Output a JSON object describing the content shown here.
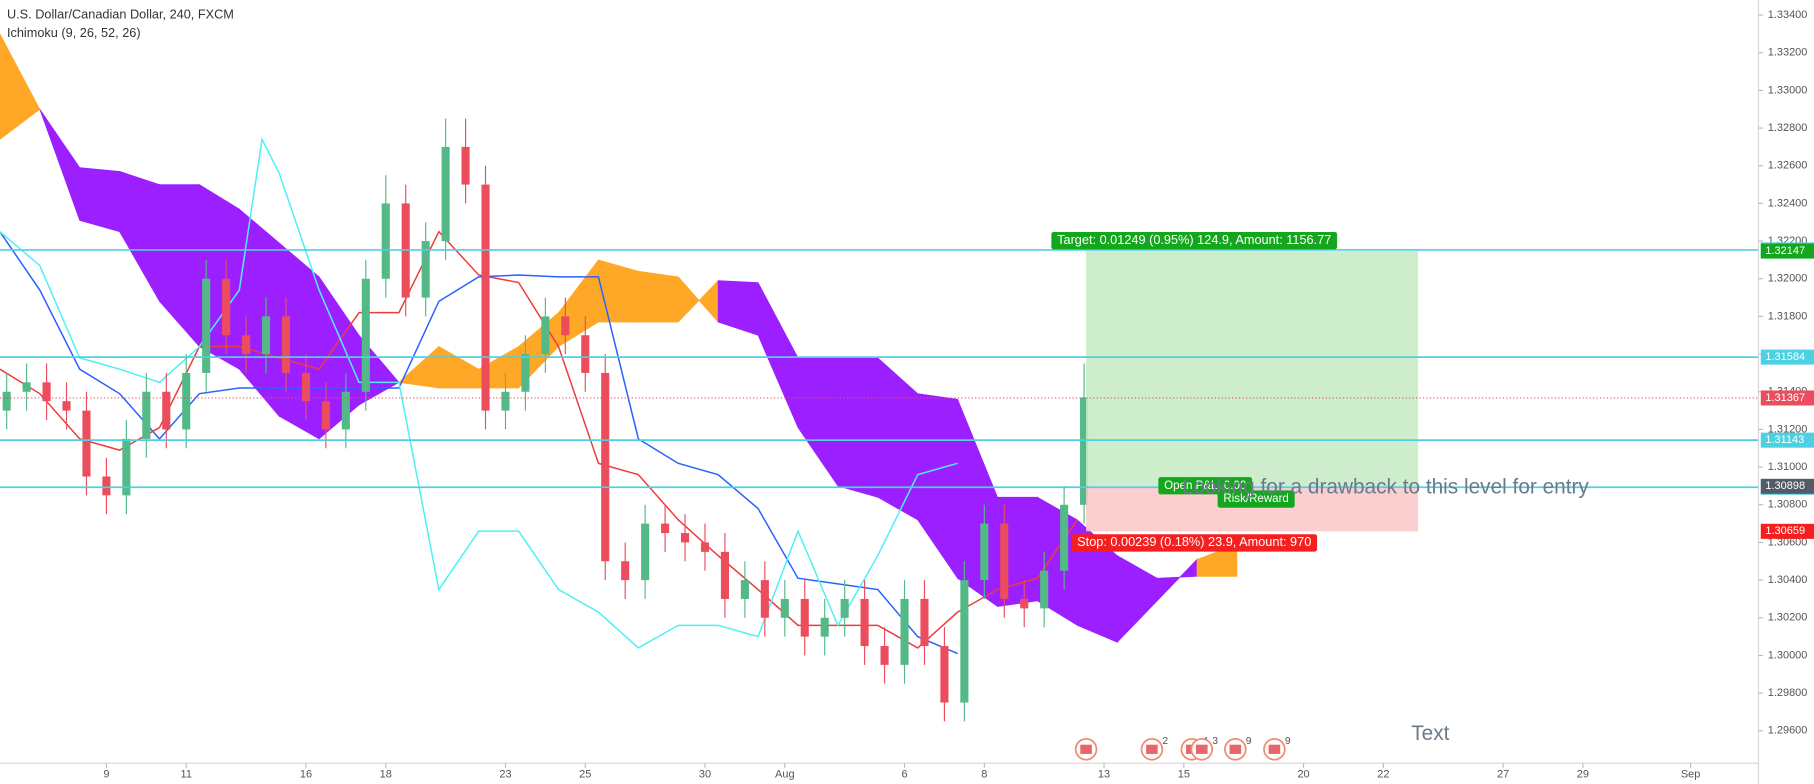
{
  "chart_data": {
    "type": "candlestick",
    "title": "U.S. Dollar/Canadian Dollar, 240, FXCM",
    "subtitle": "Ichimoku (9, 26, 52, 26)",
    "xlim": [
      2.333,
      46.4
    ],
    "xticks": [
      {
        "value": 5,
        "label": "9"
      },
      {
        "value": 7,
        "label": "11"
      },
      {
        "value": 10,
        "label": "16"
      },
      {
        "value": 12,
        "label": "18"
      },
      {
        "value": 15,
        "label": "23"
      },
      {
        "value": 17,
        "label": "25"
      },
      {
        "value": 20,
        "label": "30"
      },
      {
        "value": 22,
        "label": "Aug"
      },
      {
        "value": 25,
        "label": "6"
      },
      {
        "value": 27,
        "label": "8"
      },
      {
        "value": 30,
        "label": "13"
      },
      {
        "value": 32,
        "label": "15"
      },
      {
        "value": 35,
        "label": "20"
      },
      {
        "value": 37,
        "label": "22"
      },
      {
        "value": 40,
        "label": "27"
      },
      {
        "value": 42,
        "label": "29"
      },
      {
        "value": 44.7,
        "label": "Sep"
      }
    ],
    "ylim": [
      1.29428,
      1.3348
    ],
    "yticks": [
      {
        "value": 1.296,
        "label": "1.29600"
      },
      {
        "value": 1.298,
        "label": "1.29800"
      },
      {
        "value": 1.3,
        "label": "1.30000"
      },
      {
        "value": 1.302,
        "label": "1.30200"
      },
      {
        "value": 1.304,
        "label": "1.30400"
      },
      {
        "value": 1.306,
        "label": "1.30600"
      },
      {
        "value": 1.308,
        "label": "1.30800"
      },
      {
        "value": 1.31,
        "label": "1.31000"
      },
      {
        "value": 1.312,
        "label": "1.31200"
      },
      {
        "value": 1.314,
        "label": "1.31400"
      },
      {
        "value": 1.316,
        "label": "1.31600"
      },
      {
        "value": 1.318,
        "label": "1.31800"
      },
      {
        "value": 1.32,
        "label": "1.32000"
      },
      {
        "value": 1.322,
        "label": "1.32200"
      },
      {
        "value": 1.324,
        "label": "1.32400"
      },
      {
        "value": 1.326,
        "label": "1.32600"
      },
      {
        "value": 1.328,
        "label": "1.32800"
      },
      {
        "value": 1.33,
        "label": "1.33000"
      },
      {
        "value": 1.332,
        "label": "1.33200"
      },
      {
        "value": 1.334,
        "label": "1.33400"
      }
    ],
    "up_color": "#53b987",
    "down_color": "#eb4d5c",
    "x": [
      2.5,
      3,
      3.5,
      4,
      4.5,
      5,
      5.5,
      6,
      6.5,
      7,
      7.5,
      8,
      8.5,
      9,
      9.5,
      10,
      10.5,
      11,
      11.5,
      12,
      12.5,
      13,
      13.5,
      14,
      14.5,
      15,
      15.5,
      16,
      16.5,
      17,
      17.5,
      18,
      18.5,
      19,
      19.5,
      20,
      20.5,
      21,
      21.5,
      22,
      22.5,
      23,
      23.5,
      24,
      24.5,
      25,
      25.5,
      26,
      26.5,
      27,
      27.5,
      28,
      28.5,
      29,
      29.5
    ],
    "open": [
      1.313,
      1.314,
      1.3145,
      1.3135,
      1.313,
      1.3095,
      1.3085,
      1.3115,
      1.314,
      1.312,
      1.315,
      1.32,
      1.317,
      1.316,
      1.318,
      1.315,
      1.3135,
      1.312,
      1.314,
      1.32,
      1.324,
      1.319,
      1.322,
      1.327,
      1.325,
      1.313,
      1.314,
      1.316,
      1.318,
      1.317,
      1.315,
      1.305,
      1.304,
      1.307,
      1.3065,
      1.306,
      1.3055,
      1.303,
      1.304,
      1.302,
      1.303,
      1.301,
      1.302,
      1.303,
      1.3005,
      1.2995,
      1.303,
      1.3005,
      1.2975,
      1.304,
      1.307,
      1.303,
      1.3025,
      1.3045,
      1.308
    ],
    "high": [
      1.315,
      1.3155,
      1.3155,
      1.3145,
      1.314,
      1.3105,
      1.3125,
      1.315,
      1.315,
      1.316,
      1.321,
      1.321,
      1.318,
      1.319,
      1.319,
      1.316,
      1.3145,
      1.315,
      1.321,
      1.3255,
      1.325,
      1.323,
      1.3285,
      1.3285,
      1.326,
      1.315,
      1.317,
      1.319,
      1.319,
      1.318,
      1.316,
      1.306,
      1.308,
      1.308,
      1.3075,
      1.307,
      1.3065,
      1.305,
      1.305,
      1.304,
      1.304,
      1.303,
      1.304,
      1.304,
      1.3015,
      1.304,
      1.304,
      1.3015,
      1.305,
      1.308,
      1.308,
      1.304,
      1.3055,
      1.309,
      1.3155
    ],
    "low": [
      1.312,
      1.313,
      1.3125,
      1.312,
      1.3085,
      1.3075,
      1.3075,
      1.3105,
      1.311,
      1.311,
      1.314,
      1.316,
      1.315,
      1.315,
      1.314,
      1.3125,
      1.311,
      1.311,
      1.313,
      1.319,
      1.318,
      1.318,
      1.321,
      1.324,
      1.312,
      1.312,
      1.313,
      1.315,
      1.316,
      1.314,
      1.304,
      1.303,
      1.303,
      1.3055,
      1.305,
      1.3045,
      1.302,
      1.302,
      1.301,
      1.301,
      1.3,
      1.3,
      1.301,
      1.2995,
      1.2985,
      1.2985,
      1.2995,
      1.2965,
      1.2965,
      1.303,
      1.302,
      1.3015,
      1.3015,
      1.3035,
      1.307
    ],
    "close": [
      1.314,
      1.3145,
      1.3135,
      1.313,
      1.3095,
      1.3085,
      1.3115,
      1.314,
      1.312,
      1.315,
      1.32,
      1.317,
      1.316,
      1.318,
      1.315,
      1.3135,
      1.312,
      1.314,
      1.32,
      1.324,
      1.319,
      1.322,
      1.327,
      1.325,
      1.313,
      1.314,
      1.316,
      1.318,
      1.317,
      1.315,
      1.305,
      1.304,
      1.307,
      1.3065,
      1.306,
      1.3055,
      1.303,
      1.304,
      1.302,
      1.303,
      1.301,
      1.302,
      1.303,
      1.3005,
      1.2995,
      1.303,
      1.3005,
      1.2975,
      1.304,
      1.307,
      1.303,
      1.3025,
      1.3045,
      1.308,
      1.3137
    ],
    "cloud": {
      "x": [
        2.33,
        3.33,
        4.33,
        5.33,
        6.33,
        7.33,
        8.33,
        9.33,
        10.33,
        11.33,
        12.33,
        13.33,
        14.33,
        15.33,
        16.33,
        17.33,
        18.33,
        19.33,
        20.33,
        21.33,
        22.33,
        23.33,
        24.33,
        25.33,
        26.33,
        27.33,
        28.33,
        29.33,
        30.33,
        31.33,
        32.33,
        33.33
      ],
      "span_a": [
        1.333,
        1.329,
        1.3231,
        1.3225,
        1.3188,
        1.3164,
        1.3152,
        1.3127,
        1.3115,
        1.3133,
        1.3145,
        1.3164,
        1.3152,
        1.3164,
        1.3182,
        1.321,
        1.3204,
        1.3201,
        1.3177,
        1.317,
        1.3121,
        1.309,
        1.3084,
        1.3072,
        1.3041,
        1.3026,
        1.3029,
        1.3016,
        1.3007,
        1.3029,
        1.3051,
        1.3059
      ],
      "span_b": [
        1.3274,
        1.329,
        1.3259,
        1.3257,
        1.325,
        1.325,
        1.3237,
        1.3219,
        1.3201,
        1.317,
        1.3145,
        1.3142,
        1.3142,
        1.3142,
        1.3164,
        1.3177,
        1.3177,
        1.3177,
        1.3199,
        1.3198,
        1.3158,
        1.3158,
        1.3158,
        1.3139,
        1.3136,
        1.3084,
        1.3084,
        1.3072,
        1.3053,
        1.3041,
        1.3042,
        1.3042
      ],
      "up_color": "#ffa726",
      "down_color": "#9c1fff"
    },
    "lines": [
      {
        "color": "#2962ff",
        "x": [
          2.33,
          3.33,
          4.33,
          5.33,
          6.33,
          7.33,
          8.33,
          9.33,
          10.33,
          11.33,
          12.33,
          13.33,
          14.33,
          15.33,
          16.33,
          17.33,
          18.33,
          19.33,
          20.33,
          21.33,
          22.33,
          23.33,
          24.33,
          25.33,
          26.33
        ],
        "values": [
          1.3225,
          1.3194,
          1.3152,
          1.3139,
          1.3115,
          1.3139,
          1.3142,
          1.3142,
          1.3142,
          1.3142,
          1.3142,
          1.3188,
          1.3201,
          1.3202,
          1.3201,
          1.3201,
          1.3115,
          1.3102,
          1.3096,
          1.3078,
          1.3041,
          1.3038,
          1.3035,
          1.301,
          1.3001
        ]
      },
      {
        "color": "#ef3b3b",
        "x": [
          2.33,
          3.33,
          4.33,
          5.33,
          6.33,
          7.33,
          8.33,
          9.33,
          10.33,
          11.33,
          12.33,
          13.33,
          14.33,
          15.33,
          16.33,
          17.33,
          18.33,
          19.33,
          20.33,
          21.33,
          22.33,
          23.33,
          24.33,
          25.33,
          26.33,
          27.33,
          28.33,
          29.33
        ],
        "values": [
          1.3152,
          1.3139,
          1.3115,
          1.3109,
          1.3121,
          1.3164,
          1.3164,
          1.3158,
          1.3152,
          1.3182,
          1.3182,
          1.3225,
          1.3202,
          1.3198,
          1.3164,
          1.3102,
          1.3096,
          1.3072,
          1.3053,
          1.3035,
          1.3016,
          1.3016,
          1.3016,
          1.3004,
          1.3023,
          1.3035,
          1.3041,
          1.3072
        ]
      },
      {
        "color": "#4ff0f5",
        "x": [
          2.33,
          3.33,
          4.33,
          5.33,
          6.33,
          7.33,
          8.33,
          8.9,
          9.33,
          10.33,
          11.33,
          12.33,
          13.33,
          14.33,
          15.33,
          16.33,
          17.33,
          18.33,
          19.33,
          20.33,
          21.33,
          22.33,
          23.33,
          24.33,
          25.33,
          26.33
        ],
        "values": [
          1.3225,
          1.3207,
          1.3158,
          1.3152,
          1.3145,
          1.3164,
          1.3194,
          1.3274,
          1.3256,
          1.3194,
          1.3145,
          1.3145,
          1.3035,
          1.3066,
          1.3066,
          1.3035,
          1.3023,
          1.3004,
          1.3016,
          1.3016,
          1.301,
          1.3066,
          1.3016,
          1.3053,
          1.3096,
          1.3102
        ]
      }
    ],
    "hlines": [
      1.32153,
      1.31584,
      1.31143,
      1.30893
    ],
    "hline_color": "#4dd0e1",
    "last_price": 1.31367,
    "position": {
      "x_start": 29.55,
      "x_end": 37.87,
      "entry": 1.30898,
      "target": 1.32147,
      "stop": 1.30659,
      "target_label": "Target: 0.01249 (0.95%) 124.9, Amount: 1156.77",
      "stop_label": "Stop: 0.00239 (0.18%) 23.9, Amount: 970",
      "pnl_label": "Open P&L: 0.00",
      "rr_label": "Risk/Reward"
    },
    "annotations": [
      {
        "text": "Looking for a drawback to this level for entry",
        "x": 31.95,
        "y": 1.30888
      },
      {
        "text": "Text",
        "x": 37.7,
        "y": 1.2958
      }
    ],
    "events": [
      {
        "x": 29.55
      },
      {
        "x": 31.2,
        "label": "2"
      },
      {
        "x": 32.2,
        "label": "4"
      },
      {
        "x": 32.45,
        "label": "3"
      },
      {
        "x": 33.29,
        "label": "9"
      },
      {
        "x": 34.27,
        "label": "9"
      }
    ]
  }
}
